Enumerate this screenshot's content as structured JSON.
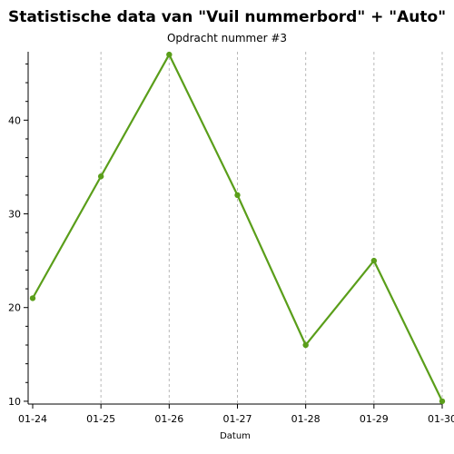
{
  "chart_data": {
    "type": "line",
    "title": "Statistische data van \"Vuil nummerbord\" + \"Auto\"",
    "subtitle": "Opdracht nummer #3",
    "xlabel": "Datum",
    "ylabel": "",
    "categories": [
      "01-24",
      "01-25",
      "01-26",
      "01-27",
      "01-28",
      "01-29",
      "01-30"
    ],
    "values": [
      21,
      34,
      47,
      32,
      16,
      25,
      10
    ],
    "yticks": [
      10,
      20,
      30,
      40
    ],
    "ylim": [
      9.7,
      47.3
    ],
    "grid": "vertical dashed",
    "legend": "none",
    "line_color": "#5a9e1a"
  }
}
